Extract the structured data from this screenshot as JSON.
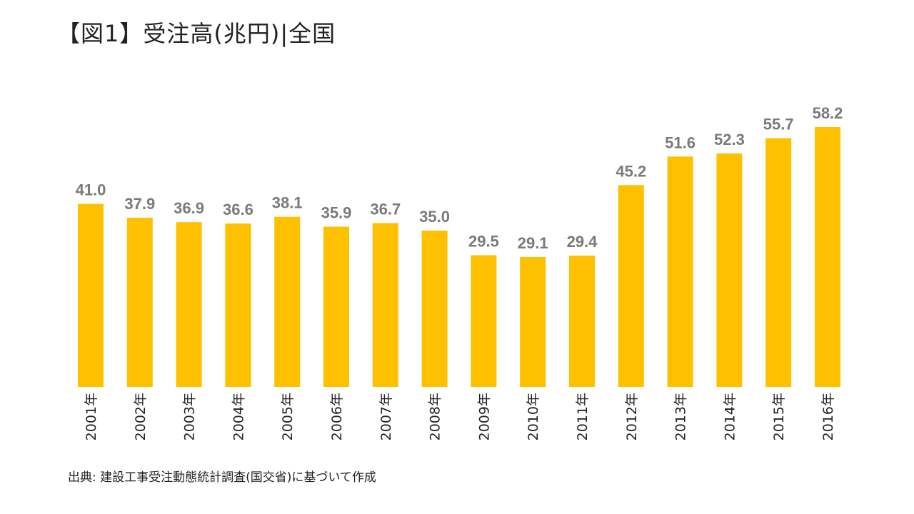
{
  "header": {
    "title": "【図1】受注高(兆円)|全国"
  },
  "footer": {
    "source": "出典: 建設工事受注動態統計調査(国交省)に基づいて作成"
  },
  "colors": {
    "bar": "#FFC000",
    "value_label": "#7A7A7A",
    "text": "#222222"
  },
  "chart_data": {
    "type": "bar",
    "title": "【図1】受注高(兆円)|全国",
    "xlabel": "",
    "ylabel": "",
    "categories": [
      "2001年",
      "2002年",
      "2003年",
      "2004年",
      "2005年",
      "2006年",
      "2007年",
      "2008年",
      "2009年",
      "2010年",
      "2011年",
      "2012年",
      "2013年",
      "2014年",
      "2015年",
      "2016年"
    ],
    "values": [
      41.0,
      37.9,
      36.9,
      36.6,
      38.1,
      35.9,
      36.7,
      35.0,
      29.5,
      29.1,
      29.4,
      45.2,
      51.6,
      52.3,
      55.7,
      58.2
    ],
    "value_labels": [
      "41.0",
      "37.9",
      "36.9",
      "36.6",
      "38.1",
      "35.9",
      "36.7",
      "35.0",
      "29.5",
      "29.1",
      "29.4",
      "45.2",
      "51.6",
      "52.3",
      "55.7",
      "58.2"
    ],
    "ylim": [
      0,
      58.2
    ],
    "grid": false,
    "legend": "none",
    "tick_label_orientation": "vertical"
  }
}
